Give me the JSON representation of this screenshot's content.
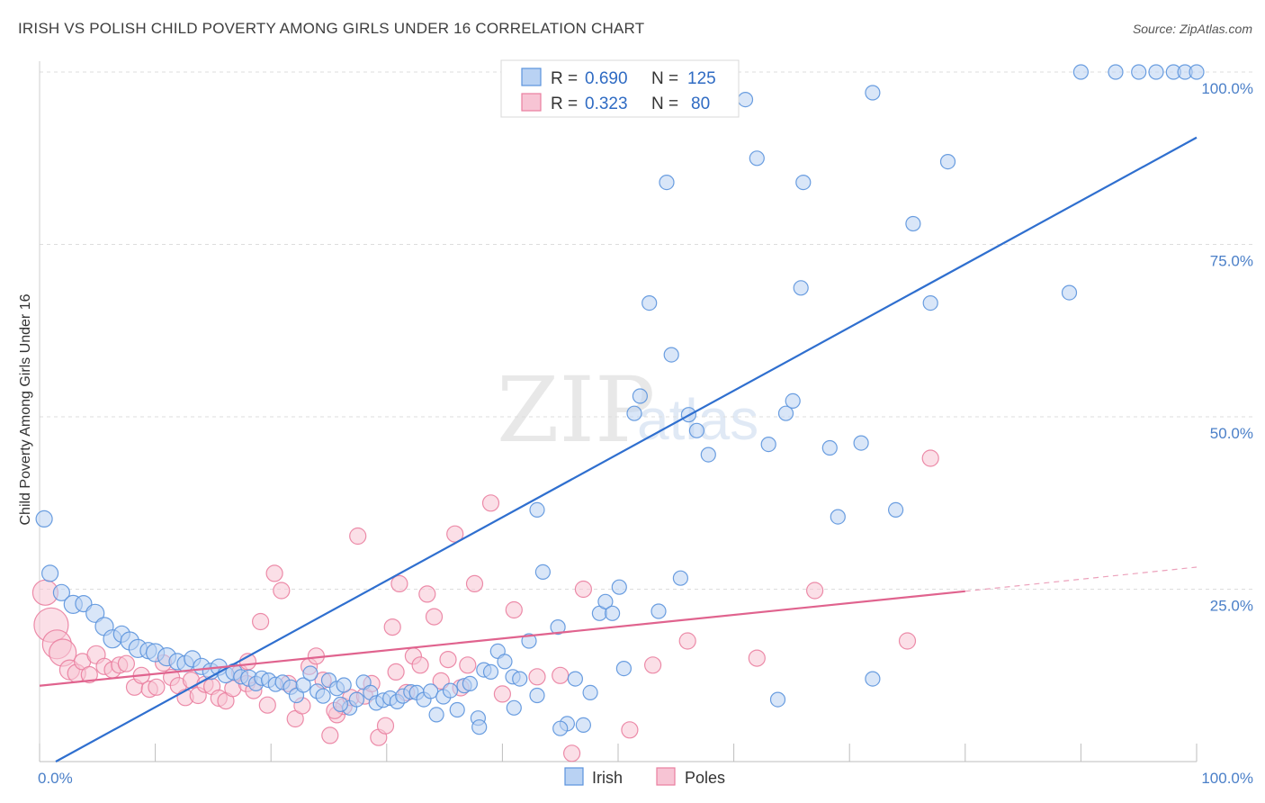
{
  "header": {
    "title": "IRISH VS POLISH CHILD POVERTY AMONG GIRLS UNDER 16 CORRELATION CHART",
    "source": "Source: ZipAtlas.com"
  },
  "watermark": {
    "zip": "ZIP",
    "atlas": "atlas"
  },
  "colors": {
    "irish": "#5b93dd",
    "irish_fill": "#b9d2f3",
    "irish_line": "#2f6fcf",
    "poles": "#ea7fa0",
    "poles_fill": "#f7c4d4",
    "poles_line": "#e0638e",
    "grid": "#dddddd",
    "tick_text": "#4a7fc8"
  },
  "legend": {
    "irish": {
      "r_label": "R =",
      "r_value": "0.690",
      "n_label": "N =",
      "n_value": "125"
    },
    "poles": {
      "r_label": "R =",
      "r_value": "0.323",
      "n_label": "N =",
      "n_value": "80"
    }
  },
  "bottom_legend": {
    "irish": "Irish",
    "poles": "Poles"
  },
  "chart_data": {
    "type": "scatter",
    "ylabel": "Child Poverty Among Girls Under 16",
    "xlabel": "",
    "xlim": [
      0,
      100
    ],
    "ylim": [
      0,
      100
    ],
    "x_tick_labels": [
      {
        "value": 0,
        "label": "0.0%"
      },
      {
        "value": 100,
        "label": "100.0%"
      }
    ],
    "y_tick_labels": [
      {
        "value": 25,
        "label": "25.0%"
      },
      {
        "value": 50,
        "label": "50.0%"
      },
      {
        "value": 75,
        "label": "75.0%"
      },
      {
        "value": 100,
        "label": "100.0%"
      }
    ],
    "grid": true,
    "legend_position": "top-center",
    "series": [
      {
        "name": "Irish",
        "r": 0.69,
        "n": 125,
        "trend": {
          "x": [
            0,
            100
          ],
          "y": [
            0,
            90.5
          ]
        },
        "points": [
          [
            0.4,
            35.2,
            9
          ],
          [
            0.9,
            27.3,
            9
          ],
          [
            1.9,
            24.5,
            9
          ],
          [
            2.9,
            22.8,
            10
          ],
          [
            3.8,
            22.9,
            9
          ],
          [
            4.8,
            21.5,
            10
          ],
          [
            5.6,
            19.6,
            10
          ],
          [
            6.3,
            17.8,
            10
          ],
          [
            7.1,
            18.5,
            9
          ],
          [
            7.8,
            17.5,
            10
          ],
          [
            8.5,
            16.4,
            10
          ],
          [
            9.4,
            16.1,
            9
          ],
          [
            10.0,
            15.8,
            10
          ],
          [
            11.0,
            15.2,
            10
          ],
          [
            11.9,
            14.5,
            9
          ],
          [
            12.6,
            14.2,
            9
          ],
          [
            13.2,
            14.9,
            9
          ],
          [
            14.0,
            13.8,
            9
          ],
          [
            14.8,
            13.1,
            9
          ],
          [
            15.5,
            13.7,
            9
          ],
          [
            16.1,
            12.6,
            9
          ],
          [
            16.8,
            13.0,
            9
          ],
          [
            17.4,
            12.3,
            8
          ],
          [
            18.1,
            12.1,
            9
          ],
          [
            18.7,
            11.3,
            8
          ],
          [
            19.2,
            12.1,
            8
          ],
          [
            19.8,
            11.8,
            8
          ],
          [
            20.4,
            11.2,
            8
          ],
          [
            21.0,
            11.5,
            8
          ],
          [
            21.7,
            10.8,
            8
          ],
          [
            22.2,
            9.6,
            8
          ],
          [
            22.8,
            11.1,
            8
          ],
          [
            23.4,
            12.8,
            8
          ],
          [
            24.0,
            10.2,
            8
          ],
          [
            24.5,
            9.5,
            8
          ],
          [
            25.0,
            11.8,
            8
          ],
          [
            25.7,
            10.6,
            8
          ],
          [
            26.3,
            11.1,
            8
          ],
          [
            26.8,
            7.8,
            8
          ],
          [
            27.4,
            9.0,
            8
          ],
          [
            28.0,
            11.5,
            8
          ],
          [
            28.6,
            10.0,
            8
          ],
          [
            29.1,
            8.5,
            8
          ],
          [
            29.7,
            8.9,
            8
          ],
          [
            30.3,
            9.2,
            8
          ],
          [
            30.9,
            8.7,
            8
          ],
          [
            31.4,
            9.5,
            8
          ],
          [
            32.1,
            10.1,
            8
          ],
          [
            32.6,
            10.0,
            8
          ],
          [
            33.2,
            9.0,
            8
          ],
          [
            33.8,
            10.2,
            8
          ],
          [
            34.3,
            6.8,
            8
          ],
          [
            34.9,
            9.4,
            8
          ],
          [
            35.5,
            10.3,
            8
          ],
          [
            36.1,
            7.5,
            8
          ],
          [
            36.7,
            11.0,
            8
          ],
          [
            37.2,
            11.3,
            8
          ],
          [
            37.9,
            6.3,
            8
          ],
          [
            38.4,
            13.3,
            8
          ],
          [
            39.0,
            13.0,
            8
          ],
          [
            39.6,
            16.0,
            8
          ],
          [
            40.2,
            14.5,
            8
          ],
          [
            40.9,
            12.3,
            8
          ],
          [
            41.5,
            12.0,
            8
          ],
          [
            42.3,
            17.5,
            8
          ],
          [
            43.0,
            36.5,
            8
          ],
          [
            43.5,
            27.5,
            8
          ],
          [
            44.8,
            19.5,
            8
          ],
          [
            45.6,
            5.5,
            8
          ],
          [
            46.3,
            12.0,
            8
          ],
          [
            47.0,
            5.3,
            8
          ],
          [
            47.6,
            10.0,
            8
          ],
          [
            48.4,
            21.5,
            8
          ],
          [
            48.9,
            23.2,
            8
          ],
          [
            49.5,
            21.5,
            8
          ],
          [
            50.1,
            25.3,
            8
          ],
          [
            50.5,
            13.5,
            8
          ],
          [
            51.4,
            50.5,
            8
          ],
          [
            51.9,
            53.0,
            8
          ],
          [
            52.7,
            66.5,
            8
          ],
          [
            53.5,
            21.8,
            8
          ],
          [
            54.2,
            84.0,
            8
          ],
          [
            54.6,
            59.0,
            8
          ],
          [
            55.4,
            26.6,
            8
          ],
          [
            56.1,
            50.3,
            8
          ],
          [
            56.8,
            48.0,
            8
          ],
          [
            57.8,
            44.5,
            8
          ],
          [
            59.0,
            96.5,
            8
          ],
          [
            61.0,
            96.0,
            8
          ],
          [
            62.0,
            87.5,
            8
          ],
          [
            63.0,
            46.0,
            8
          ],
          [
            63.8,
            9.0,
            8
          ],
          [
            64.5,
            50.5,
            8
          ],
          [
            65.1,
            52.3,
            8
          ],
          [
            65.8,
            68.7,
            8
          ],
          [
            66.0,
            84.0,
            8
          ],
          [
            68.3,
            45.5,
            8
          ],
          [
            69.0,
            35.5,
            8
          ],
          [
            72.0,
            12.0,
            8
          ],
          [
            74.0,
            36.5,
            8
          ],
          [
            75.5,
            78.0,
            8
          ],
          [
            77.0,
            66.5,
            8
          ],
          [
            78.5,
            87.0,
            8
          ],
          [
            71.0,
            46.2,
            8
          ],
          [
            72.0,
            97.0,
            8
          ],
          [
            89.0,
            68.0,
            8
          ],
          [
            90.0,
            100.0,
            8
          ],
          [
            93.0,
            100.0,
            8
          ],
          [
            95.0,
            100.0,
            8
          ],
          [
            96.5,
            100.0,
            8
          ],
          [
            98.0,
            100.0,
            8
          ],
          [
            99.0,
            100.0,
            8
          ],
          [
            100.0,
            100.0,
            8
          ],
          [
            38.0,
            5.0,
            8
          ],
          [
            41.0,
            7.8,
            8
          ],
          [
            43.0,
            9.6,
            8
          ],
          [
            45.0,
            4.8,
            8
          ],
          [
            26.0,
            8.3,
            8
          ]
        ]
      },
      {
        "name": "Poles",
        "r": 0.323,
        "n": 80,
        "trend": {
          "x": [
            0,
            80
          ],
          "y": [
            11.0,
            24.7
          ]
        },
        "trend_dashed": {
          "x": [
            80,
            100
          ],
          "y": [
            24.7,
            28.2
          ]
        },
        "points": [
          [
            0.5,
            24.5,
            14
          ],
          [
            1.0,
            19.8,
            19
          ],
          [
            1.5,
            17.0,
            16
          ],
          [
            2.0,
            15.8,
            15
          ],
          [
            2.6,
            13.3,
            11
          ],
          [
            3.2,
            12.8,
            10
          ],
          [
            3.7,
            14.5,
            9
          ],
          [
            4.3,
            12.6,
            9
          ],
          [
            4.9,
            15.5,
            10
          ],
          [
            5.6,
            13.8,
            9
          ],
          [
            6.3,
            13.3,
            9
          ],
          [
            6.9,
            14.0,
            9
          ],
          [
            7.5,
            14.2,
            9
          ],
          [
            8.2,
            10.8,
            9
          ],
          [
            8.8,
            12.5,
            9
          ],
          [
            9.5,
            10.5,
            9
          ],
          [
            10.1,
            10.8,
            9
          ],
          [
            10.7,
            14.3,
            9
          ],
          [
            11.4,
            12.2,
            9
          ],
          [
            12.0,
            11.0,
            9
          ],
          [
            12.6,
            9.3,
            9
          ],
          [
            13.1,
            11.8,
            9
          ],
          [
            13.7,
            9.6,
            9
          ],
          [
            14.3,
            11.2,
            9
          ],
          [
            14.9,
            10.9,
            9
          ],
          [
            15.5,
            9.2,
            9
          ],
          [
            16.1,
            8.8,
            9
          ],
          [
            16.7,
            10.6,
            9
          ],
          [
            17.3,
            12.9,
            9
          ],
          [
            17.9,
            11.3,
            9
          ],
          [
            18.5,
            10.3,
            9
          ],
          [
            19.1,
            20.3,
            9
          ],
          [
            19.7,
            8.2,
            9
          ],
          [
            20.3,
            27.3,
            9
          ],
          [
            20.9,
            24.8,
            9
          ],
          [
            21.5,
            11.3,
            9
          ],
          [
            22.1,
            6.2,
            9
          ],
          [
            22.7,
            8.1,
            9
          ],
          [
            23.3,
            13.8,
            9
          ],
          [
            23.9,
            15.3,
            9
          ],
          [
            24.5,
            11.8,
            9
          ],
          [
            25.1,
            3.8,
            9
          ],
          [
            25.7,
            6.8,
            9
          ],
          [
            26.3,
            8.0,
            9
          ],
          [
            26.9,
            9.3,
            9
          ],
          [
            27.5,
            32.7,
            9
          ],
          [
            28.1,
            9.5,
            9
          ],
          [
            28.7,
            11.3,
            9
          ],
          [
            29.3,
            3.5,
            9
          ],
          [
            29.9,
            5.2,
            9
          ],
          [
            30.5,
            19.5,
            9
          ],
          [
            31.1,
            25.8,
            9
          ],
          [
            31.7,
            10.0,
            9
          ],
          [
            32.3,
            15.3,
            9
          ],
          [
            32.9,
            14.0,
            9
          ],
          [
            33.5,
            24.3,
            9
          ],
          [
            34.1,
            21.0,
            9
          ],
          [
            34.7,
            11.7,
            9
          ],
          [
            35.3,
            14.8,
            9
          ],
          [
            35.9,
            33.0,
            9
          ],
          [
            36.4,
            10.7,
            9
          ],
          [
            37.0,
            14.0,
            9
          ],
          [
            37.6,
            25.8,
            9
          ],
          [
            39.0,
            37.5,
            9
          ],
          [
            41.0,
            22.0,
            9
          ],
          [
            43.0,
            12.3,
            9
          ],
          [
            45.0,
            12.5,
            9
          ],
          [
            46.0,
            1.2,
            9
          ],
          [
            47.0,
            25.0,
            9
          ],
          [
            51.0,
            4.6,
            9
          ],
          [
            53.0,
            14.0,
            9
          ],
          [
            56.0,
            17.5,
            9
          ],
          [
            62.0,
            15.0,
            9
          ],
          [
            67.0,
            24.8,
            9
          ],
          [
            75.0,
            17.5,
            9
          ],
          [
            77.0,
            44.0,
            9
          ],
          [
            18.0,
            14.5,
            9
          ],
          [
            25.5,
            7.4,
            9
          ],
          [
            30.8,
            13.0,
            9
          ],
          [
            40.0,
            9.8,
            9
          ]
        ]
      }
    ]
  }
}
